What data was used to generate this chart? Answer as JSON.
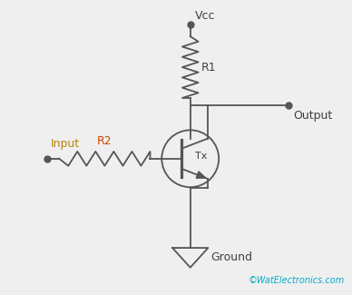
{
  "bg_color": "#efefef",
  "line_color": "#555555",
  "input_label_color": "#b8860b",
  "r2_label_color": "#cc4400",
  "label_color": "#404040",
  "watermark_color": "#00aacc",
  "watermark": "©WatElectronics.com",
  "vcc_label": "Vcc",
  "r1_label": "R1",
  "r2_label": "R2",
  "input_label": "Input",
  "output_label": "Output",
  "ground_label": "Ground",
  "tx_label": "Tx",
  "figw": 3.88,
  "figh": 3.25,
  "dpi": 100
}
